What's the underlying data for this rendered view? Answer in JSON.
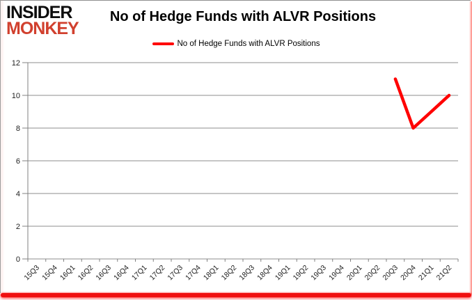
{
  "logo": {
    "line1": "INSIDER",
    "line2": "MONKEY"
  },
  "header": {
    "title": "No of Hedge Funds with ALVR Positions"
  },
  "legend": {
    "label": "No of Hedge Funds with ALVR Positions",
    "swatch_color": "#ff0000"
  },
  "chart_data": {
    "type": "line",
    "title": "No of Hedge Funds with ALVR Positions",
    "categories": [
      "15Q3",
      "15Q4",
      "16Q1",
      "16Q2",
      "16Q3",
      "16Q4",
      "17Q1",
      "17Q2",
      "17Q3",
      "17Q4",
      "18Q1",
      "18Q2",
      "18Q3",
      "18Q4",
      "19Q1",
      "19Q2",
      "19Q3",
      "19Q4",
      "20Q1",
      "20Q2",
      "20Q3",
      "20Q4",
      "21Q1",
      "21Q2"
    ],
    "series": [
      {
        "name": "No of Hedge Funds with ALVR Positions",
        "color": "#ff0000",
        "values": [
          null,
          null,
          null,
          null,
          null,
          null,
          null,
          null,
          null,
          null,
          null,
          null,
          null,
          null,
          null,
          null,
          null,
          null,
          null,
          null,
          11,
          8,
          9,
          10
        ]
      }
    ],
    "xlabel": "",
    "ylabel": "",
    "ylim": [
      0,
      12
    ],
    "ytick_step": 2,
    "yticks": [
      0,
      2,
      4,
      6,
      8,
      10,
      12
    ],
    "grid": true,
    "legend_position": "top"
  },
  "colors": {
    "gridline": "#8e8e8e",
    "axis": "#808080",
    "tick_label": "#1f1f1f",
    "line": "#ff0000",
    "logo_black": "#0d0d0d",
    "logo_red": "#d1402e",
    "frame_bottom": "#f01010"
  }
}
